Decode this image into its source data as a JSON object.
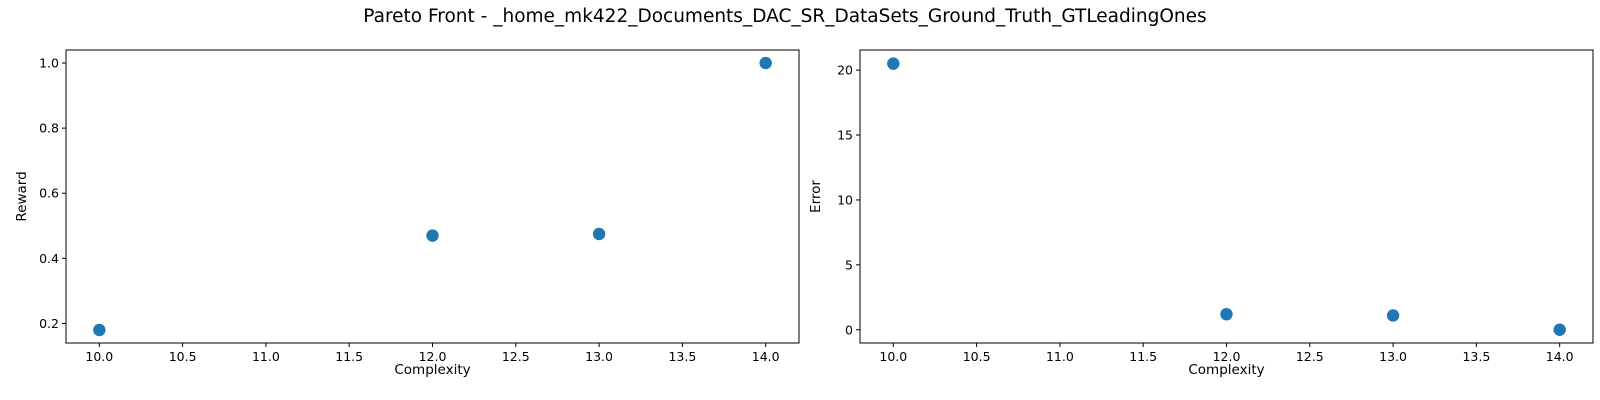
{
  "figure": {
    "title": "Pareto Front - _home_mk422_Documents_DAC_SR_DataSets_Ground_Truth_GTLeadingOnes"
  },
  "colors": {
    "marker": "#1f77b4",
    "axes": "#000000"
  },
  "chart_data": [
    {
      "type": "scatter",
      "title": "",
      "xlabel": "Complexity",
      "ylabel": "Reward",
      "x": [
        10,
        12,
        13,
        14
      ],
      "y": [
        0.18,
        0.47,
        0.475,
        1.0
      ],
      "xlim": [
        9.8,
        14.2
      ],
      "ylim": [
        0.14,
        1.04
      ],
      "xticks": [
        "10.0",
        "10.5",
        "11.0",
        "11.5",
        "12.0",
        "12.5",
        "13.0",
        "13.5",
        "14.0"
      ],
      "yticks": [
        "0.2",
        "0.4",
        "0.6",
        "0.8",
        "1.0"
      ],
      "grid": false
    },
    {
      "type": "scatter",
      "title": "",
      "xlabel": "Complexity",
      "ylabel": "Error",
      "x": [
        10,
        12,
        13,
        14
      ],
      "y": [
        20.5,
        1.2,
        1.1,
        0.0
      ],
      "xlim": [
        9.8,
        14.2
      ],
      "ylim": [
        -1.02,
        21.55
      ],
      "xticks": [
        "10.0",
        "10.5",
        "11.0",
        "11.5",
        "12.0",
        "12.5",
        "13.0",
        "13.5",
        "14.0"
      ],
      "yticks": [
        "0",
        "5",
        "10",
        "15",
        "20"
      ],
      "grid": false
    }
  ]
}
